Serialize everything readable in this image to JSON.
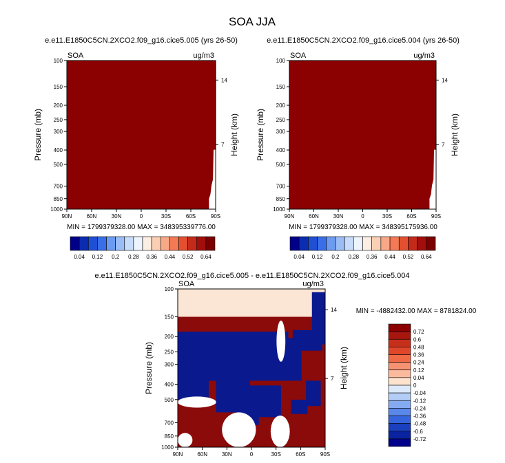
{
  "page_title": "SOA JJA",
  "colors": {
    "field": "#8b0000",
    "blank": "#ffffff",
    "diff_top": "#fbe6d6",
    "diff_red": "#8b0a0a",
    "diff_blue": "#0a1a8e"
  },
  "chart_data": [
    {
      "type": "heatmap",
      "panel": "top-left",
      "title": "e.e11.E1850C5CN.2XCO2.f09_g16.cice5.005 (yrs 26-50)",
      "variable_label": "SOA",
      "units_label": "ug/m3",
      "ylabel": "Pressure (mb)",
      "ylabel_right": "Height (km)",
      "x_ticks": [
        "90N",
        "60N",
        "30N",
        "0",
        "30S",
        "60S",
        "90S"
      ],
      "y_ticks": [
        "100",
        "150",
        "200",
        "250",
        "300",
        "400",
        "500",
        "700",
        "850",
        "1000"
      ],
      "y_ticks_right": [
        "14",
        "7"
      ],
      "ylim": [
        1000,
        100
      ],
      "stats": "MIN = 1799379328.00   MAX = 348395339776.00",
      "colorbar_labels": [
        "0.04",
        "0.12",
        "0.2",
        "0.28",
        "0.36",
        "0.44",
        "0.52",
        "0.64"
      ],
      "colorbar_colors": [
        "#00008b",
        "#0b2bb0",
        "#1f4fd2",
        "#3a6ee8",
        "#6c9cf2",
        "#9bbdf6",
        "#c7dcfb",
        "#eef4fd",
        "#fdeee3",
        "#fbcfb4",
        "#f9a887",
        "#f37a55",
        "#e4502f",
        "#c42a1a",
        "#a20e0c",
        "#7a0000"
      ]
    },
    {
      "type": "heatmap",
      "panel": "top-right",
      "title": "e.e11.E1850C5CN.2XCO2.f09_g16.cice5.004 (yrs 26-50)",
      "variable_label": "SOA",
      "units_label": "ug/m3",
      "ylabel": "Pressure (mb)",
      "ylabel_right": "Height (km)",
      "x_ticks": [
        "90N",
        "60N",
        "30N",
        "0",
        "30S",
        "60S",
        "90S"
      ],
      "y_ticks": [
        "100",
        "150",
        "200",
        "250",
        "300",
        "400",
        "500",
        "700",
        "850",
        "1000"
      ],
      "y_ticks_right": [
        "14",
        "7"
      ],
      "ylim": [
        1000,
        100
      ],
      "stats": "MIN = 1799379328.00   MAX = 348395175936.00",
      "colorbar_labels": [
        "0.04",
        "0.12",
        "0.2",
        "0.28",
        "0.36",
        "0.44",
        "0.52",
        "0.64"
      ],
      "colorbar_colors": [
        "#00008b",
        "#0b2bb0",
        "#1f4fd2",
        "#3a6ee8",
        "#6c9cf2",
        "#9bbdf6",
        "#c7dcfb",
        "#eef4fd",
        "#fdeee3",
        "#fbcfb4",
        "#f9a887",
        "#f37a55",
        "#e4502f",
        "#c42a1a",
        "#a20e0c",
        "#7a0000"
      ]
    },
    {
      "type": "heatmap",
      "panel": "bottom-difference",
      "title": "e.e11.E1850C5CN.2XCO2.f09_g16.cice5.005 - e.e11.E1850C5CN.2XCO2.f09_g16.cice5.004",
      "variable_label": "SOA",
      "units_label": "ug/m3",
      "ylabel": "Pressure (mb)",
      "ylabel_right": "Height (km)",
      "x_ticks": [
        "90N",
        "60N",
        "30N",
        "0",
        "30S",
        "60S",
        "90S"
      ],
      "y_ticks": [
        "100",
        "150",
        "200",
        "250",
        "300",
        "400",
        "500",
        "700",
        "850",
        "1000"
      ],
      "y_ticks_right": [
        "14",
        "7"
      ],
      "ylim": [
        1000,
        100
      ],
      "stats": "MIN = -4882432.00   MAX = 8781824.00",
      "colorbar_labels": [
        "0.72",
        "0.6",
        "0.48",
        "0.36",
        "0.24",
        "0.12",
        "0.04",
        "0",
        "-0.04",
        "-0.12",
        "-0.24",
        "-0.36",
        "-0.48",
        "-0.6",
        "-0.72"
      ],
      "colorbar_colors": [
        "#8b0000",
        "#a8170e",
        "#c62f1a",
        "#e0472a",
        "#f06a45",
        "#f79272",
        "#fbb99d",
        "#fde2cd",
        "#dbe9fb",
        "#b3cdf7",
        "#84aaf1",
        "#5a87ea",
        "#3564dc",
        "#1a3fbf",
        "#0a23a0",
        "#00008b"
      ]
    }
  ]
}
